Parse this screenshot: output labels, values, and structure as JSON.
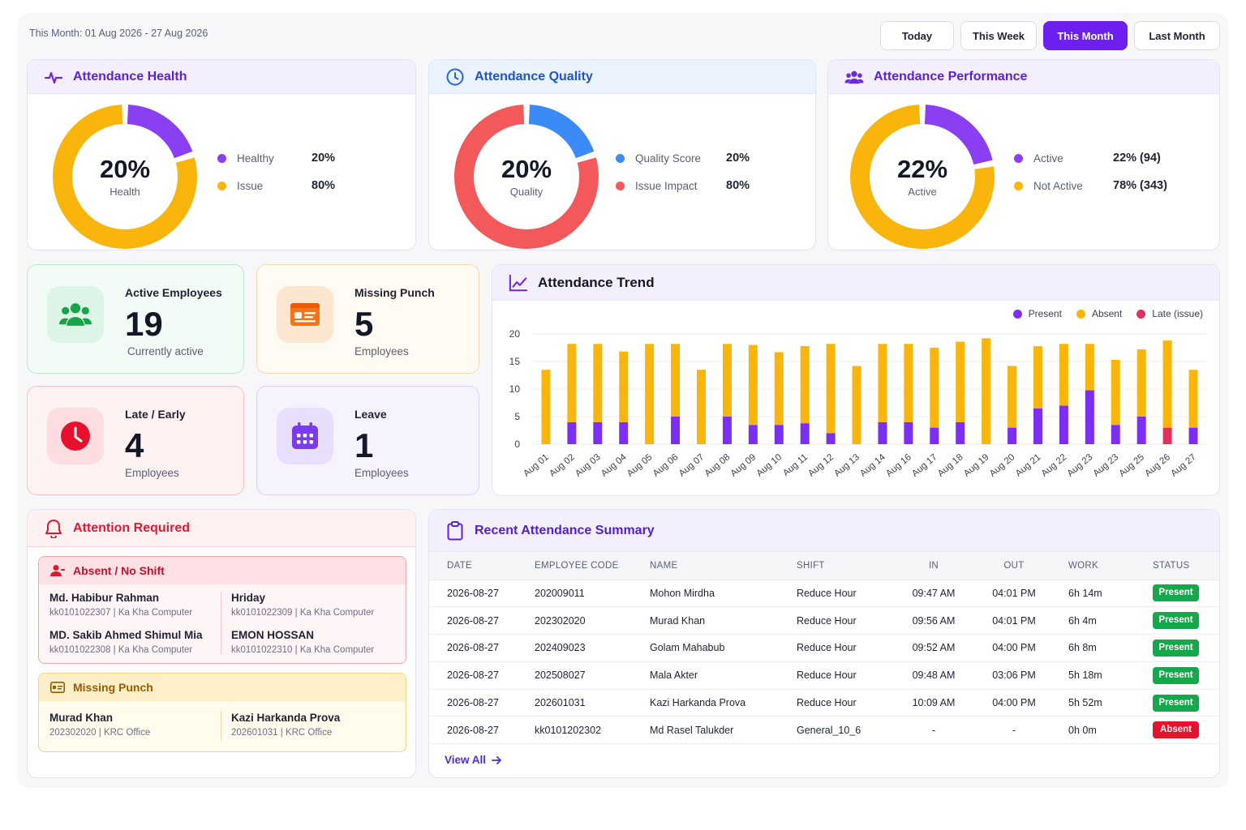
{
  "header": {
    "range_label": "This Month: 01 Aug 2026 - 27 Aug 2026"
  },
  "tabs": [
    {
      "label": "Today",
      "active": false
    },
    {
      "label": "This Week",
      "active": false
    },
    {
      "label": "This Month",
      "active": true
    },
    {
      "label": "Last Month",
      "active": false
    }
  ],
  "health": {
    "title": "Attendance Health",
    "icon": "pulse-icon",
    "center_value": "20%",
    "center_label": "Health",
    "segments": [
      {
        "label": "Healthy",
        "value": "20%",
        "fraction": 0.2,
        "color": "#8b3ff2"
      },
      {
        "label": "Issue",
        "value": "80%",
        "fraction": 0.8,
        "color": "#f9b50c"
      }
    ]
  },
  "quality": {
    "title": "Attendance Quality",
    "icon": "clock-icon",
    "center_value": "20%",
    "center_label": "Quality",
    "segments": [
      {
        "label": "Quality Score",
        "value": "20%",
        "fraction": 0.2,
        "color": "#3b8bf6"
      },
      {
        "label": "Issue Impact",
        "value": "80%",
        "fraction": 0.8,
        "color": "#f3585a"
      }
    ]
  },
  "performance": {
    "title": "Attendance Performance",
    "icon": "users-icon",
    "center_value": "22%",
    "center_label": "Active",
    "segments": [
      {
        "label": "Active",
        "value": "22% (94)",
        "fraction": 0.22,
        "color": "#8b3ff2"
      },
      {
        "label": "Not Active",
        "value": "78% (343)",
        "fraction": 0.78,
        "color": "#f9b50c"
      }
    ]
  },
  "stats": {
    "active": {
      "title": "Active Employees",
      "value": "19",
      "sub": "Currently active",
      "icon": "users-icon"
    },
    "missing": {
      "title": "Missing Punch",
      "value": "5",
      "sub": "Employees",
      "icon": "id-card-icon"
    },
    "late": {
      "title": "Late / Early",
      "value": "4",
      "sub": "Employees",
      "icon": "clock-icon"
    },
    "leave": {
      "title": "Leave",
      "value": "1",
      "sub": "Employees",
      "icon": "calendar-icon"
    }
  },
  "trend": {
    "title": "Attendance Trend",
    "colors": {
      "present": "#7c2ff0",
      "absent": "#f9b50c",
      "late": "#e0315a"
    }
  },
  "chart_data": {
    "type": "bar",
    "stacked": true,
    "categories": [
      "Aug 01",
      "Aug 02",
      "Aug 03",
      "Aug 04",
      "Aug 05",
      "Aug 06",
      "Aug 07",
      "Aug 08",
      "Aug 09",
      "Aug 10",
      "Aug 11",
      "Aug 12",
      "Aug 13",
      "Aug 14",
      "Aug 16",
      "Aug 17",
      "Aug 18",
      "Aug 19",
      "Aug 20",
      "Aug 21",
      "Aug 22",
      "Aug 23",
      "Aug 23",
      "Aug 25",
      "Aug 26",
      "Aug 27"
    ],
    "series": [
      {
        "name": "Present",
        "values": [
          0,
          4,
          4,
          4,
          0,
          5,
          0,
          5,
          3.5,
          3.5,
          3.8,
          2,
          0,
          4,
          4,
          3,
          4,
          0,
          3,
          6.5,
          7,
          9.8,
          3.5,
          5,
          0,
          3
        ]
      },
      {
        "name": "Absent",
        "values": [
          13.5,
          14.2,
          14.2,
          12.8,
          18.2,
          13.2,
          13.5,
          13.2,
          14.5,
          13.2,
          14,
          16.2,
          14.2,
          14.2,
          14.2,
          14.5,
          14.6,
          19.2,
          11.2,
          11.3,
          11.2,
          8.4,
          11.8,
          12.2,
          15.8,
          10.5
        ]
      },
      {
        "name": "Late (issue)",
        "values": [
          0,
          0,
          0,
          0,
          0,
          0,
          0,
          0,
          0,
          0,
          0,
          0,
          0,
          0,
          0,
          0,
          0,
          0,
          0,
          0,
          0,
          0,
          0,
          0,
          3,
          0
        ]
      }
    ],
    "ylim": [
      0,
      20
    ],
    "yticks": [
      0,
      5,
      10,
      15,
      20
    ],
    "grid": true,
    "legend": "top-right"
  },
  "attention": {
    "title": "Attention Required",
    "absent": {
      "title": "Absent / No Shift",
      "people": [
        {
          "name": "Md. Habibur Rahman",
          "code": "kk0101022307 | Ka Kha Computer"
        },
        {
          "name": "Hriday",
          "code": "kk0101022309 | Ka Kha Computer"
        },
        {
          "name": "MD. Sakib Ahmed Shimul Mia",
          "code": "kk0101022308 | Ka Kha Computer"
        },
        {
          "name": "EMON HOSSAN",
          "code": "kk0101022310 | Ka Kha Computer"
        }
      ]
    },
    "missing": {
      "title": "Missing Punch",
      "people": [
        {
          "name": "Murad Khan",
          "code": "202302020 | KRC Office"
        },
        {
          "name": "Kazi Harkanda Prova",
          "code": "202601031 | KRC Office"
        }
      ]
    }
  },
  "summary": {
    "title": "Recent Attendance Summary",
    "columns": [
      "DATE",
      "EMPLOYEE CODE",
      "NAME",
      "SHIFT",
      "IN",
      "OUT",
      "WORK",
      "STATUS"
    ],
    "rows": [
      [
        "2026-08-27",
        "202009011",
        "Mohon Mirdha",
        "Reduce Hour",
        "09:47 AM",
        "04:01 PM",
        "6h 14m",
        "Present"
      ],
      [
        "2026-08-27",
        "202302020",
        "Murad Khan",
        "Reduce Hour",
        "09:56 AM",
        "04:01 PM",
        "6h 4m",
        "Present"
      ],
      [
        "2026-08-27",
        "202409023",
        "Golam Mahabub",
        "Reduce Hour",
        "09:52 AM",
        "04:00 PM",
        "6h 8m",
        "Present"
      ],
      [
        "2026-08-27",
        "202508027",
        "Mala Akter",
        "Reduce Hour",
        "09:48 AM",
        "03:06 PM",
        "5h 18m",
        "Present"
      ],
      [
        "2026-08-27",
        "202601031",
        "Kazi Harkanda Prova",
        "Reduce Hour",
        "10:09 AM",
        "04:00 PM",
        "5h 52m",
        "Present"
      ],
      [
        "2026-08-27",
        "kk0101202302",
        "Md Rasel Talukder",
        "General_10_6",
        "-",
        "-",
        "0h 0m",
        "Absent"
      ]
    ],
    "status_colors": {
      "Present": "#13a84a",
      "Absent": "#e8112d"
    },
    "view_all": "View All"
  }
}
